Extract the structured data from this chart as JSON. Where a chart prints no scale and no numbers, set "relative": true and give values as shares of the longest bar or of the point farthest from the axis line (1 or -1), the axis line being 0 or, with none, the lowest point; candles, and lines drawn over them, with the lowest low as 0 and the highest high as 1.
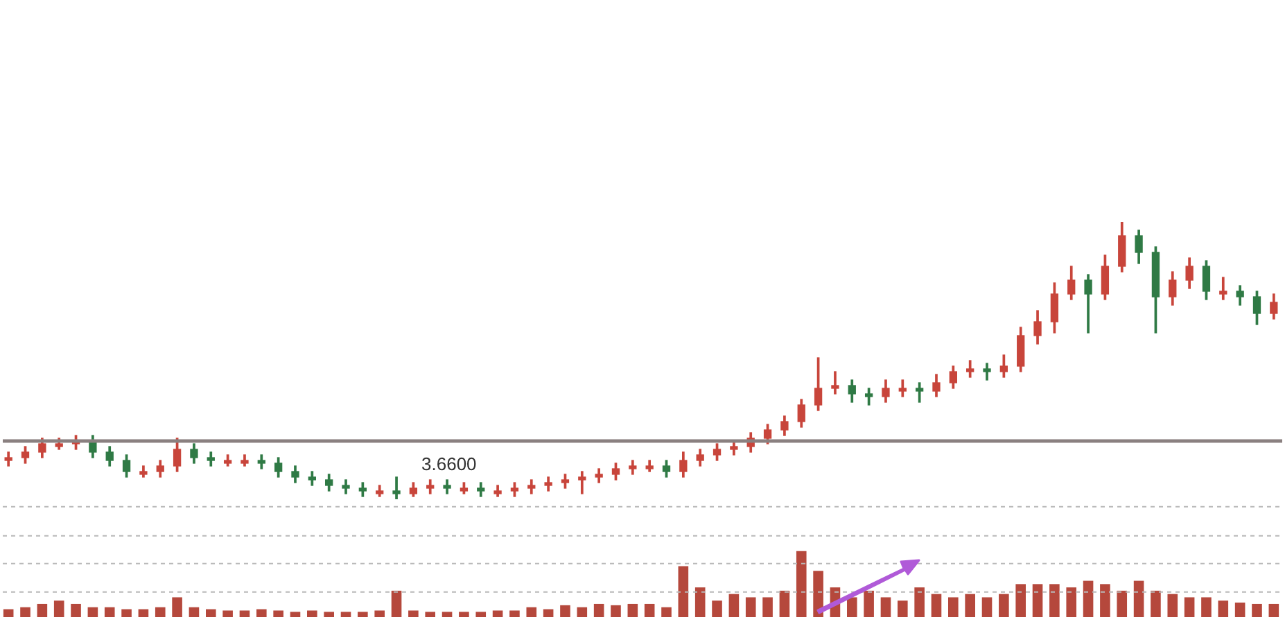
{
  "chart_data": [
    {
      "type": "candlestick",
      "relative": true,
      "tick_labels": false,
      "color": "#3c3434",
      "categories": [
        null,
        null,
        null,
        null,
        null,
        null,
        null,
        null,
        null,
        null,
        null,
        null,
        null,
        null,
        null,
        null,
        null,
        null,
        null,
        null,
        null,
        null,
        null,
        null,
        null,
        null,
        null,
        null,
        null,
        null,
        null,
        null,
        null,
        null,
        null,
        null,
        null,
        null,
        null,
        null,
        null,
        null,
        null,
        null,
        null,
        null,
        null,
        null,
        null,
        null,
        null,
        null,
        null,
        null,
        null,
        null,
        null,
        null,
        null,
        null,
        null,
        null,
        null,
        null,
        null,
        null,
        null,
        null,
        null,
        null,
        null,
        null,
        null,
        null,
        null,
        null
      ],
      "ohlc": [
        [
          0.14,
          0.17,
          0.12,
          0.15
        ],
        [
          0.15,
          0.19,
          0.13,
          0.17
        ],
        [
          0.17,
          0.22,
          0.15,
          0.2
        ],
        [
          0.19,
          0.22,
          0.18,
          0.2
        ],
        [
          0.2,
          0.23,
          0.18,
          0.21
        ],
        [
          0.21,
          0.23,
          0.15,
          0.17
        ],
        [
          0.17,
          0.19,
          0.12,
          0.14
        ],
        [
          0.14,
          0.16,
          0.08,
          0.1
        ],
        [
          0.09,
          0.12,
          0.08,
          0.1
        ],
        [
          0.1,
          0.14,
          0.08,
          0.12
        ],
        [
          0.12,
          0.22,
          0.1,
          0.18
        ],
        [
          0.18,
          0.2,
          0.13,
          0.15
        ],
        [
          0.15,
          0.17,
          0.12,
          0.14
        ],
        [
          0.13,
          0.16,
          0.12,
          0.14
        ],
        [
          0.13,
          0.16,
          0.12,
          0.14
        ],
        [
          0.14,
          0.16,
          0.11,
          0.13
        ],
        [
          0.13,
          0.15,
          0.08,
          0.1
        ],
        [
          0.1,
          0.12,
          0.06,
          0.08
        ],
        [
          0.08,
          0.1,
          0.05,
          0.07
        ],
        [
          0.07,
          0.09,
          0.03,
          0.05
        ],
        [
          0.05,
          0.07,
          0.02,
          0.04
        ],
        [
          0.04,
          0.06,
          0.01,
          0.03
        ],
        [
          0.02,
          0.05,
          0.01,
          0.03
        ],
        [
          0.03,
          0.08,
          0,
          0.02
        ],
        [
          0.02,
          0.06,
          0.01,
          0.04
        ],
        [
          0.04,
          0.07,
          0.02,
          0.05
        ],
        [
          0.05,
          0.07,
          0.02,
          0.04
        ],
        [
          0.03,
          0.06,
          0.02,
          0.04
        ],
        [
          0.04,
          0.06,
          0.01,
          0.03
        ],
        [
          0.02,
          0.05,
          0.01,
          0.03
        ],
        [
          0.03,
          0.06,
          0.01,
          0.04
        ],
        [
          0.04,
          0.07,
          0.02,
          0.05
        ],
        [
          0.05,
          0.08,
          0.03,
          0.06
        ],
        [
          0.06,
          0.09,
          0.04,
          0.07
        ],
        [
          0.07,
          0.1,
          0.02,
          0.08
        ],
        [
          0.08,
          0.11,
          0.06,
          0.09
        ],
        [
          0.09,
          0.13,
          0.07,
          0.11
        ],
        [
          0.11,
          0.14,
          0.09,
          0.12
        ],
        [
          0.11,
          0.14,
          0.1,
          0.12
        ],
        [
          0.12,
          0.14,
          0.08,
          0.1
        ],
        [
          0.1,
          0.17,
          0.08,
          0.14
        ],
        [
          0.14,
          0.18,
          0.12,
          0.16
        ],
        [
          0.16,
          0.2,
          0.14,
          0.18
        ],
        [
          0.18,
          0.21,
          0.16,
          0.19
        ],
        [
          0.19,
          0.24,
          0.17,
          0.22
        ],
        [
          0.22,
          0.27,
          0.2,
          0.25
        ],
        [
          0.25,
          0.3,
          0.23,
          0.28
        ],
        [
          0.28,
          0.36,
          0.26,
          0.34
        ],
        [
          0.34,
          0.51,
          0.32,
          0.4
        ],
        [
          0.4,
          0.46,
          0.38,
          0.41
        ],
        [
          0.41,
          0.43,
          0.35,
          0.38
        ],
        [
          0.38,
          0.4,
          0.34,
          0.37
        ],
        [
          0.37,
          0.43,
          0.35,
          0.4
        ],
        [
          0.39,
          0.43,
          0.37,
          0.4
        ],
        [
          0.4,
          0.42,
          0.35,
          0.39
        ],
        [
          0.39,
          0.45,
          0.37,
          0.42
        ],
        [
          0.42,
          0.48,
          0.4,
          0.46
        ],
        [
          0.46,
          0.5,
          0.44,
          0.47
        ],
        [
          0.47,
          0.49,
          0.43,
          0.46
        ],
        [
          0.46,
          0.52,
          0.44,
          0.48
        ],
        [
          0.48,
          0.62,
          0.46,
          0.59
        ],
        [
          0.59,
          0.68,
          0.56,
          0.64
        ],
        [
          0.64,
          0.78,
          0.6,
          0.74
        ],
        [
          0.74,
          0.84,
          0.72,
          0.79
        ],
        [
          0.79,
          0.81,
          0.6,
          0.74
        ],
        [
          0.74,
          0.88,
          0.72,
          0.84
        ],
        [
          0.84,
          1,
          0.82,
          0.95
        ],
        [
          0.95,
          0.97,
          0.85,
          0.89
        ],
        [
          0.89,
          0.91,
          0.6,
          0.73
        ],
        [
          0.73,
          0.82,
          0.7,
          0.79
        ],
        [
          0.79,
          0.87,
          0.76,
          0.84
        ],
        [
          0.84,
          0.86,
          0.72,
          0.75
        ],
        [
          0.74,
          0.8,
          0.72,
          0.75
        ],
        [
          0.75,
          0.77,
          0.7,
          0.73
        ],
        [
          0.73,
          0.75,
          0.63,
          0.67
        ],
        [
          0.67,
          0.74,
          0.65,
          0.71
        ]
      ],
      "colors": [
        "#c8453b",
        "#c8453b",
        "#c8453b",
        "#c8453b",
        "#c8453b",
        "#2f7a45",
        "#2f7a45",
        "#2f7a45",
        "#c8453b",
        "#c8453b",
        "#c8453b",
        "#2f7a45",
        "#2f7a45",
        "#c8453b",
        "#c8453b",
        "#2f7a45",
        "#2f7a45",
        "#2f7a45",
        "#2f7a45",
        "#2f7a45",
        "#2f7a45",
        "#2f7a45",
        "#c8453b",
        "#2f7a45",
        "#c8453b",
        "#c8453b",
        "#2f7a45",
        "#c8453b",
        "#2f7a45",
        "#c8453b",
        "#c8453b",
        "#c8453b",
        "#c8453b",
        "#c8453b",
        "#c8453b",
        "#c8453b",
        "#c8453b",
        "#c8453b",
        "#c8453b",
        "#2f7a45",
        "#c8453b",
        "#c8453b",
        "#c8453b",
        "#c8453b",
        "#c8453b",
        "#c8453b",
        "#c8453b",
        "#c8453b",
        "#c8453b",
        "#c8453b",
        "#2f7a45",
        "#2f7a45",
        "#c8453b",
        "#c8453b",
        "#2f7a45",
        "#c8453b",
        "#c8453b",
        "#c8453b",
        "#2f7a45",
        "#c8453b",
        "#c8453b",
        "#c8453b",
        "#c8453b",
        "#c8453b",
        "#2f7a45",
        "#c8453b",
        "#c8453b",
        "#2f7a45",
        "#2f7a45",
        "#c8453b",
        "#c8453b",
        "#2f7a45",
        "#c8453b",
        "#2f7a45",
        "#2f7a45",
        "#c8453b"
      ],
      "ref_lines": [
        {
          "axis": "y",
          "value": 0.21,
          "color": "#8a8080"
        }
      ],
      "annotations": [
        "3.6600"
      ]
    },
    {
      "type": "bar",
      "relative": true,
      "tick_labels": false,
      "color": "#b5483c",
      "ref_lines": [
        {
          "axis": "y",
          "value": 0.38,
          "color": "#b8b8b8",
          "line_style": "dashed"
        },
        {
          "axis": "y",
          "value": 0.81,
          "color": "#b8b8b8",
          "line_style": "dashed"
        },
        {
          "axis": "y",
          "value": 1.23,
          "color": "#b8b8b8",
          "line_style": "dashed"
        },
        {
          "axis": "y",
          "value": 1.67,
          "color": "#b8b8b8",
          "line_style": "dashed"
        }
      ],
      "categories": [
        null,
        null,
        null,
        null,
        null,
        null,
        null,
        null,
        null,
        null,
        null,
        null,
        null,
        null,
        null,
        null,
        null,
        null,
        null,
        null,
        null,
        null,
        null,
        null,
        null,
        null,
        null,
        null,
        null,
        null,
        null,
        null,
        null,
        null,
        null,
        null,
        null,
        null,
        null,
        null,
        null,
        null,
        null,
        null,
        null,
        null,
        null,
        null,
        null,
        null,
        null,
        null,
        null,
        null,
        null,
        null,
        null,
        null,
        null,
        null,
        null,
        null,
        null,
        null,
        null,
        null,
        null,
        null,
        null,
        null,
        null,
        null,
        null,
        null,
        null,
        null
      ],
      "values": [
        0.12,
        0.15,
        0.2,
        0.25,
        0.2,
        0.15,
        0.15,
        0.12,
        0.12,
        0.15,
        0.3,
        0.15,
        0.12,
        0.1,
        0.1,
        0.12,
        0.1,
        0.08,
        0.1,
        0.08,
        0.08,
        0.08,
        0.1,
        0.4,
        0.1,
        0.08,
        0.08,
        0.08,
        0.08,
        0.1,
        0.1,
        0.15,
        0.12,
        0.18,
        0.15,
        0.2,
        0.18,
        0.2,
        0.2,
        0.15,
        0.77,
        0.45,
        0.25,
        0.35,
        0.3,
        0.3,
        0.4,
        1,
        0.7,
        0.45,
        0.3,
        0.4,
        0.3,
        0.25,
        0.45,
        0.35,
        0.3,
        0.35,
        0.3,
        0.35,
        0.5,
        0.5,
        0.5,
        0.45,
        0.55,
        0.5,
        0.4,
        0.55,
        0.4,
        0.35,
        0.3,
        0.3,
        0.25,
        0.22,
        0.2,
        0.2
      ]
    }
  ]
}
